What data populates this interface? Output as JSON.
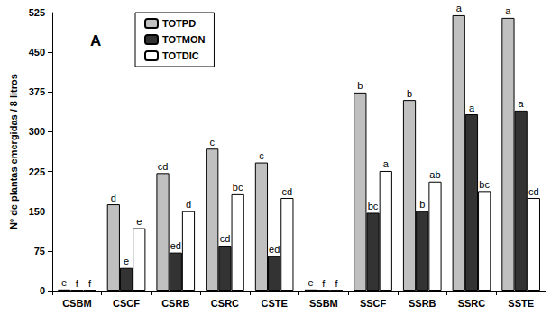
{
  "chart_data": {
    "type": "bar",
    "title": "A",
    "y_label": "Nº de plantas emergidas / 8 litros",
    "categories": [
      "CSBM",
      "CSCF",
      "CSRB",
      "CSRC",
      "CSTE",
      "SSBM",
      "SSCF",
      "SSRB",
      "SSRC",
      "SSTE"
    ],
    "series": [
      {
        "name": "TOTPD",
        "color": "#c0c0c0",
        "values": [
          2,
          163,
          222,
          268,
          242,
          2,
          374,
          360,
          520,
          515
        ],
        "annotations": [
          "e",
          "d",
          "cd",
          "c",
          "c",
          "e",
          "b",
          "b",
          "a",
          "a"
        ]
      },
      {
        "name": "TOTMON",
        "color": "#333333",
        "values": [
          1,
          43,
          72,
          85,
          65,
          1,
          147,
          150,
          333,
          340
        ],
        "annotations": [
          "f",
          "e",
          "ed",
          "cd",
          "ed",
          "f",
          "bc",
          "b",
          "a",
          "a"
        ]
      },
      {
        "name": "TOTDIC",
        "color": "#ffffff",
        "values": [
          1,
          118,
          150,
          182,
          175,
          1,
          226,
          206,
          188,
          175
        ],
        "annotations": [
          "f",
          "e",
          "d",
          "bc",
          "cd",
          "f",
          "a",
          "ab",
          "bc",
          "cd"
        ]
      }
    ],
    "ylim": [
      0,
      525
    ],
    "yticks": [
      0,
      75,
      150,
      225,
      300,
      375,
      450,
      525
    ],
    "grid": false,
    "legend": "top-left"
  }
}
